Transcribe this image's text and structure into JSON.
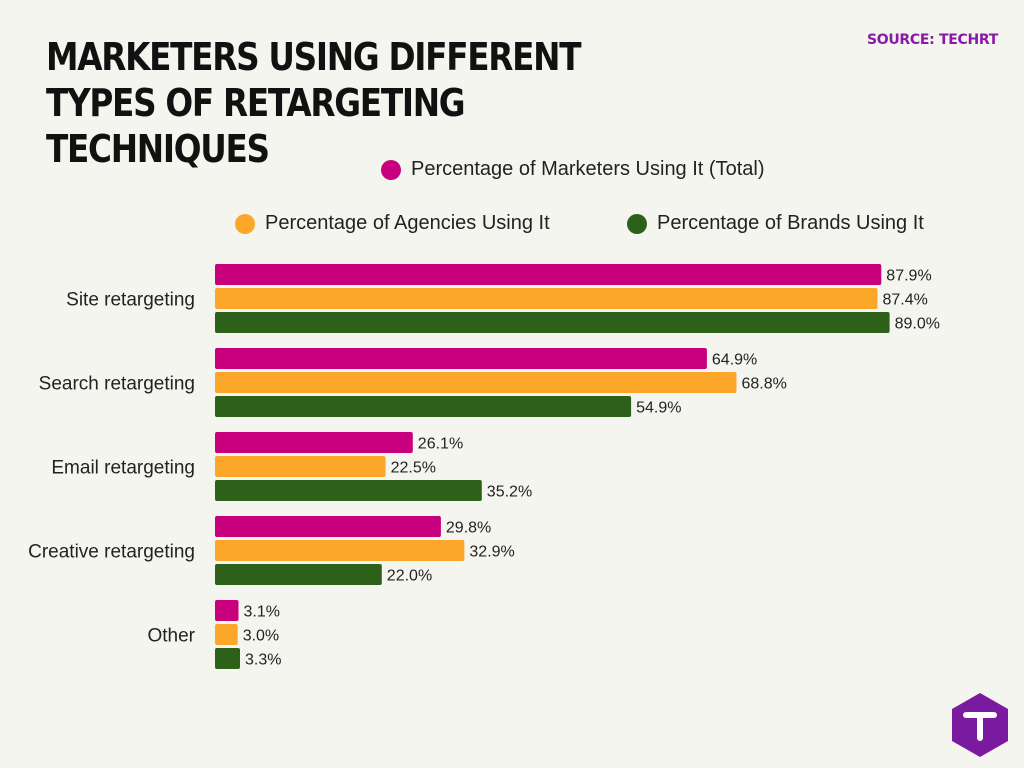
{
  "header": {
    "title": "MARKETERS USING DIFFERENT TYPES OF RETARGETING TECHNIQUES",
    "source": "SOURCE: TECHRT"
  },
  "logo": {
    "icon": "techrt-logo-icon"
  },
  "chart_data": {
    "type": "bar",
    "orientation": "horizontal",
    "title": "MARKETERS USING DIFFERENT TYPES OF RETARGETING TECHNIQUES",
    "categories": [
      "Site retargeting",
      "Search retargeting",
      "Email retargeting",
      "Creative retargeting",
      "Other"
    ],
    "series": [
      {
        "name": "Percentage of Marketers Using It (Total)",
        "color": "#c8007d",
        "values": [
          87.9,
          64.9,
          26.1,
          29.8,
          3.1
        ],
        "labels": [
          "87.9%",
          "64.9%",
          "26.1%",
          "29.8%",
          "3.1%"
        ]
      },
      {
        "name": "Percentage of Agencies Using It",
        "color": "#fca72a",
        "values": [
          87.4,
          68.8,
          22.5,
          32.9,
          3.0
        ],
        "labels": [
          "87.4%",
          "68.8%",
          "22.5%",
          "32.9%",
          "3.0%"
        ]
      },
      {
        "name": "Percentage of Brands Using It",
        "color": "#2d6119",
        "values": [
          89.0,
          54.9,
          35.2,
          22.0,
          3.3
        ],
        "labels": [
          "89.0%",
          "54.9%",
          "35.2%",
          "22.0%",
          "3.3%"
        ]
      }
    ],
    "xlim": [
      0,
      100
    ],
    "grid": false,
    "legend_position": "top-right",
    "data_labels": true
  }
}
